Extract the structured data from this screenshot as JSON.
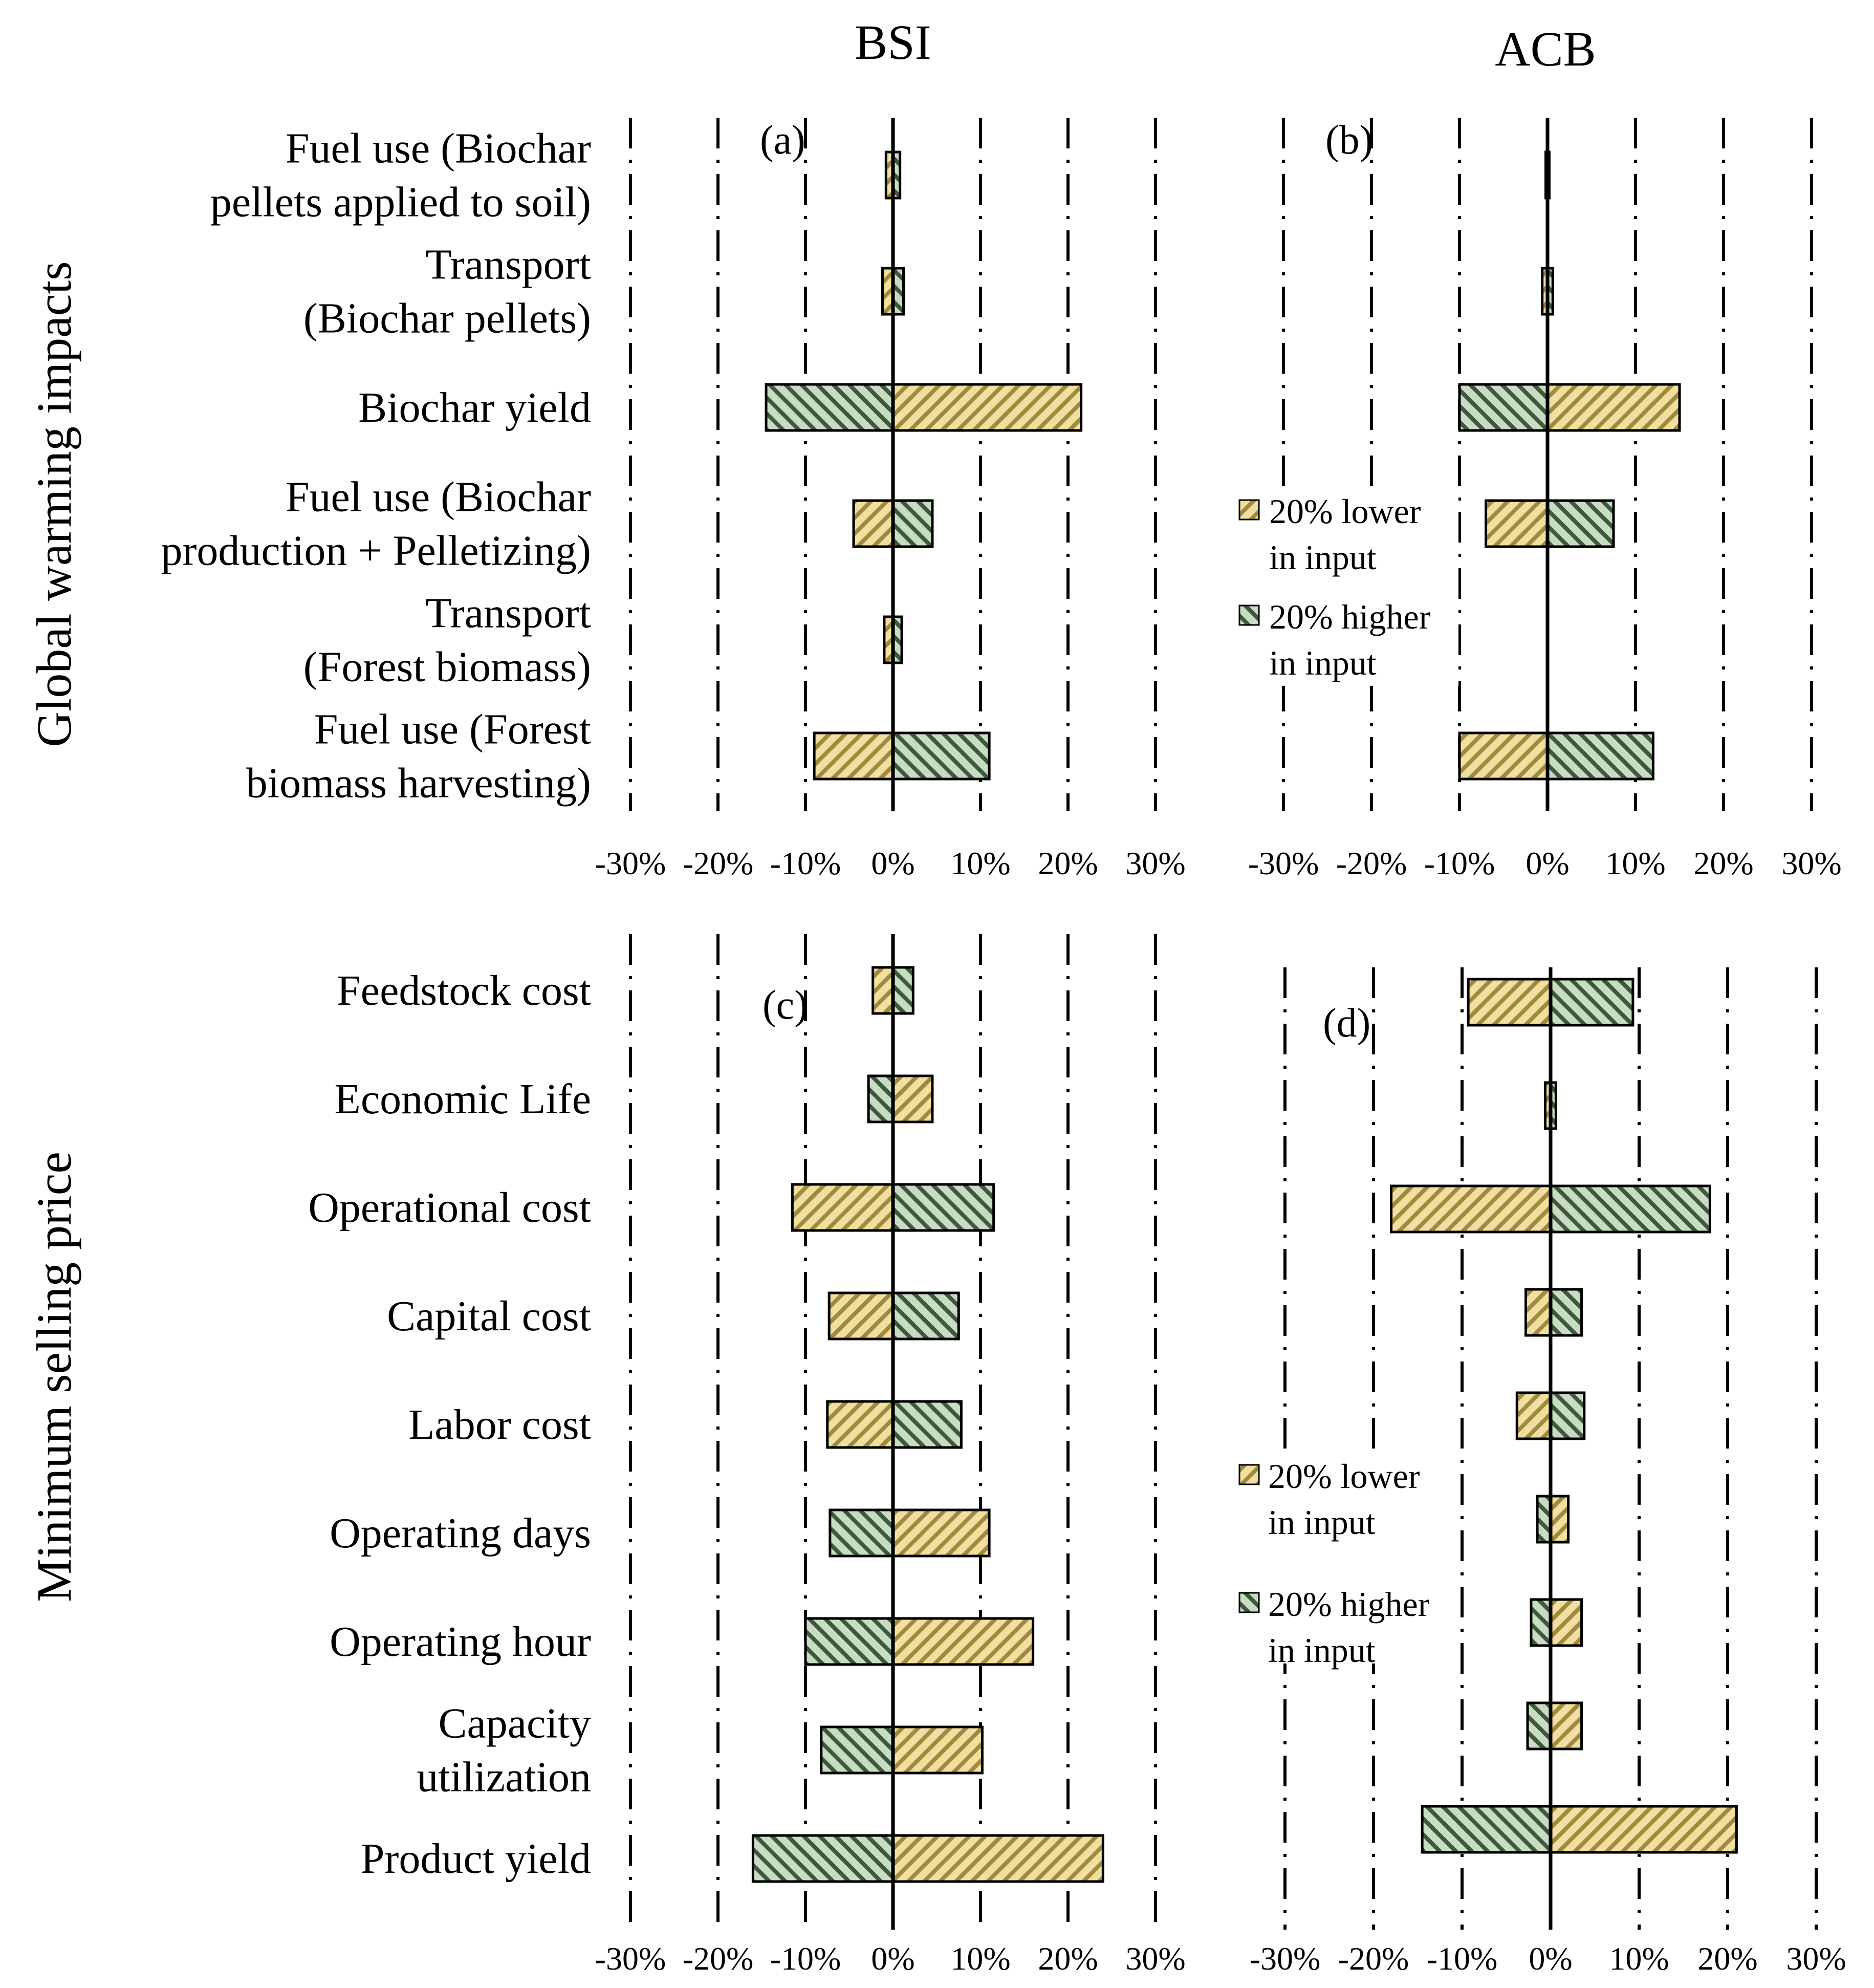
{
  "colors": {
    "lower_fill": "#f0dfa0",
    "lower_stripe": "#a08a3c",
    "higher_fill": "#c9dcc3",
    "higher_stripe": "#3c5a3c",
    "bar_edge": "#000000",
    "grid": "#000000"
  },
  "column_titles": [
    "BSI",
    "ACB"
  ],
  "row_titles": [
    "Global warming impacts",
    "Minimum selling price"
  ],
  "legend": {
    "lower": "20% lower in input",
    "higher": "20% higher in input"
  },
  "chart_data": [
    {
      "type": "bar",
      "orientation": "horizontal",
      "panel": "(a)",
      "column": "BSI",
      "row": "Global warming impacts",
      "xlim": [
        -30,
        30
      ],
      "ticks": [
        "-30%",
        "-20%",
        "-10%",
        "0%",
        "10%",
        "20%",
        "30%"
      ],
      "categories": [
        [
          "Fuel use (Biochar",
          "pellets applied to soil)"
        ],
        [
          "Transport",
          "(Biochar pellets)"
        ],
        [
          "Biochar yield"
        ],
        [
          "Fuel use (Biochar",
          "production + Pelletizing)"
        ],
        [
          "Transport",
          "(Forest biomass)"
        ],
        [
          "Fuel use (Forest",
          "biomass harvesting)"
        ]
      ],
      "series": [
        {
          "name": "20% lower in input",
          "values": [
            -0.8,
            -1.2,
            21.5,
            -4.5,
            -1.0,
            -9
          ]
        },
        {
          "name": "20% higher in input",
          "values": [
            0.8,
            1.2,
            -14.5,
            4.5,
            1.0,
            11
          ]
        }
      ],
      "legend_shown": false
    },
    {
      "type": "bar",
      "orientation": "horizontal",
      "panel": "(b)",
      "column": "ACB",
      "row": "Global warming impacts",
      "xlim": [
        -30,
        30
      ],
      "ticks": [
        "-30%",
        "-20%",
        "-10%",
        "0%",
        "10%",
        "20%",
        "30%"
      ],
      "categories": [
        [
          "Fuel use (Biochar",
          "pellets applied to soil)"
        ],
        [
          "Transport",
          "(Biochar pellets)"
        ],
        [
          "Biochar yield"
        ],
        [
          "Fuel use (Biochar",
          "production + Pelletizing)"
        ],
        [
          "Transport",
          "(Forest biomass)"
        ],
        [
          "Fuel use (Forest",
          "biomass harvesting)"
        ]
      ],
      "series": [
        {
          "name": "20% lower in input",
          "values": [
            -0.2,
            -0.6,
            15,
            -7,
            0,
            -10
          ]
        },
        {
          "name": "20% higher in input",
          "values": [
            0.2,
            0.6,
            -10,
            7.5,
            0,
            12
          ]
        }
      ],
      "legend_shown": true,
      "legend_position": "center-left"
    },
    {
      "type": "bar",
      "orientation": "horizontal",
      "panel": "(c)",
      "column": "BSI",
      "row": "Minimum selling price",
      "xlim": [
        -30,
        30
      ],
      "ticks": [
        "-30%",
        "-20%",
        "-10%",
        "0%",
        "10%",
        "20%",
        "30%"
      ],
      "categories": [
        [
          "Feedstock cost"
        ],
        [
          "Economic Life"
        ],
        [
          "Operational cost"
        ],
        [
          "Capital cost"
        ],
        [
          "Labor cost"
        ],
        [
          "Operating days"
        ],
        [
          "Operating hour"
        ],
        [
          "Capacity",
          "utilization"
        ],
        [
          "Product yield"
        ]
      ],
      "series": [
        {
          "name": "20% lower in input",
          "values": [
            -2.3,
            4.5,
            -11.5,
            -7.3,
            -7.5,
            11,
            16,
            10.2,
            24
          ]
        },
        {
          "name": "20% higher in input",
          "values": [
            2.3,
            -2.8,
            11.5,
            7.5,
            7.8,
            -7.2,
            -10,
            -8.2,
            -16
          ]
        }
      ],
      "legend_shown": false
    },
    {
      "type": "bar",
      "orientation": "horizontal",
      "panel": "(d)",
      "column": "ACB",
      "row": "Minimum selling price",
      "xlim": [
        -30,
        30
      ],
      "ticks": [
        "-30%",
        "-20%",
        "-10%",
        "0%",
        "10%",
        "20%",
        "30%"
      ],
      "categories": [
        [
          "Feedstock cost"
        ],
        [
          "Economic Life"
        ],
        [
          "Operational cost"
        ],
        [
          "Capital cost"
        ],
        [
          "Labor cost"
        ],
        [
          "Operating days"
        ],
        [
          "Operating hour"
        ],
        [
          "Capacity",
          "utilization"
        ],
        [
          "Product yield"
        ]
      ],
      "series": [
        {
          "name": "20% lower in input",
          "values": [
            -9.3,
            -0.6,
            -18,
            -2.8,
            -3.8,
            2,
            3.5,
            3.5,
            21
          ]
        },
        {
          "name": "20% higher in input",
          "values": [
            9.3,
            0.6,
            18,
            3.5,
            3.8,
            -1.5,
            -2.2,
            -2.6,
            -14.5
          ]
        }
      ],
      "legend_shown": true,
      "legend_position": "lower-left"
    }
  ]
}
